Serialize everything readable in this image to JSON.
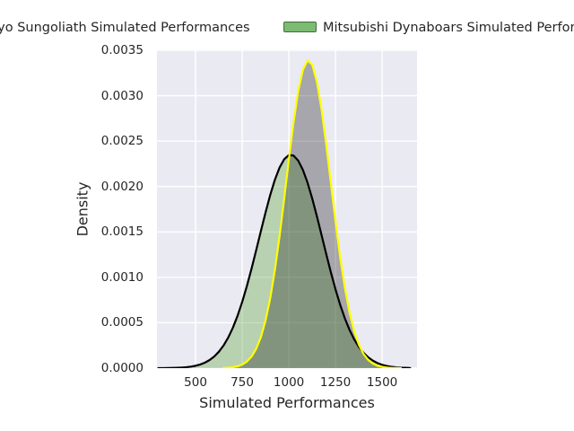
{
  "figure": {
    "background": "#ffffff",
    "text_color": "#262626"
  },
  "legend": {
    "entries": [
      {
        "label": "Tokyo Sungoliath Simulated Performances",
        "swatch_color": "#a7a7af",
        "swatch_border": "#6f6f77",
        "clipped": "left edge of figure (only 'o Sungoliath Simulated Performances' visible)"
      },
      {
        "label": "Mitsubishi Dynaboars Simulated Performances",
        "swatch_color": "#7cbb72",
        "swatch_border": "#3f6d3a",
        "clipped": "right edge of figure (visible up to 'Simulated Perf')"
      }
    ]
  },
  "chart_data": {
    "type": "area",
    "subtype": "kde-density",
    "title": "",
    "xlabel": "Simulated Performances",
    "ylabel": "Density",
    "xlim": [
      293,
      1687
    ],
    "ylim": [
      0,
      0.00351
    ],
    "xtick_values": [
      500,
      750,
      1000,
      1250,
      1500
    ],
    "xtick_labels": [
      "500",
      "750",
      "1000",
      "1250",
      "1500"
    ],
    "ytick_values": [
      0.0,
      0.0005,
      0.001,
      0.0015,
      0.002,
      0.0025,
      0.003,
      0.0035
    ],
    "ytick_labels": [
      "0.0000",
      "0.0005",
      "0.0010",
      "0.0015",
      "0.0020",
      "0.0025",
      "0.0030",
      "0.0035"
    ],
    "grid": true,
    "grid_color": "#ffffff",
    "plot_background": "#eaeaf2",
    "legend_position": "above-plot, two columns, overflowing figure edges",
    "series": [
      {
        "name": "Tokyo Sungoliath Simulated Performances",
        "line_color": "#000000",
        "line_width": 2.2,
        "fill_color": "rgba(91,164,58,0.35)",
        "peak": {
          "x": 1010,
          "y": 0.00235
        },
        "x": [
          300,
          325,
          350,
          375,
          400,
          425,
          450,
          475,
          500,
          525,
          550,
          575,
          600,
          625,
          650,
          675,
          700,
          725,
          750,
          775,
          800,
          825,
          850,
          875,
          900,
          925,
          950,
          975,
          1000,
          1025,
          1050,
          1075,
          1100,
          1125,
          1150,
          1175,
          1200,
          1225,
          1250,
          1275,
          1300,
          1325,
          1350,
          1375,
          1400,
          1425,
          1450,
          1475,
          1500,
          1525,
          1550,
          1575,
          1600,
          1625,
          1650
        ],
        "y": [
          4e-07,
          7e-07,
          1.3e-06,
          2.2e-06,
          3.8e-06,
          6.3e-06,
          1.03e-05,
          1.66e-05,
          2.61e-05,
          4.02e-05,
          6.04e-05,
          8.9e-05,
          0.0001283,
          0.0001809,
          0.0002496,
          0.0003373,
          0.0004456,
          0.0005764,
          0.0007296,
          0.0009038,
          0.0010957,
          0.0013,
          0.0015091,
          0.0017145,
          0.0019062,
          0.0020739,
          0.0022081,
          0.0023007,
          0.0023459,
          0.0023409,
          0.0022858,
          0.0021843,
          0.0020427,
          0.0018694,
          0.0016742,
          0.0014673,
          0.0012584,
          0.0010562,
          0.0008675,
          0.0006972,
          0.0005486,
          0.0004222,
          0.0003181,
          0.0002344,
          0.0001691,
          0.0001194,
          8.25e-05,
          5.58e-05,
          3.69e-05,
          2.39e-05,
          1.52e-05,
          9.4e-06,
          5.7e-06,
          3.4e-06,
          2e-06
        ]
      },
      {
        "name": "Mitsubishi Dynaboars Simulated Performances",
        "line_color": "#ffff00",
        "line_width": 2.2,
        "fill_color": "rgba(0,0,0,0.29)",
        "peak": {
          "x": 1105,
          "y": 0.00339
        },
        "x": [
          650,
          675,
          700,
          725,
          750,
          775,
          800,
          825,
          850,
          875,
          900,
          925,
          950,
          975,
          1000,
          1025,
          1050,
          1075,
          1100,
          1125,
          1150,
          1175,
          1200,
          1225,
          1250,
          1275,
          1300,
          1325,
          1350,
          1375,
          1400,
          1425,
          1450,
          1475,
          1500,
          1525,
          1550,
          1575,
          1600
        ],
        "y": [
          2.3e-06,
          4.9e-06,
          1.03e-05,
          2.07e-05,
          3.96e-05,
          7.25e-05,
          0.0001269,
          0.0002128,
          0.0003412,
          0.0005235,
          0.0007688,
          0.0010798,
          0.0014515,
          0.0018667,
          0.0022969,
          0.0027052,
          0.0030466,
          0.003284,
          0.003387,
          0.0033425,
          0.0031561,
          0.0028514,
          0.0024649,
          0.002039,
          0.0016136,
          0.0012219,
          0.0008852,
          0.0006137,
          0.000407,
          0.0002585,
          0.0001569,
          9.11e-05,
          5.07e-05,
          2.7e-05,
          1.37e-05,
          6.7e-06,
          3.1e-06,
          1.6e-06,
          8e-07
        ]
      }
    ]
  }
}
